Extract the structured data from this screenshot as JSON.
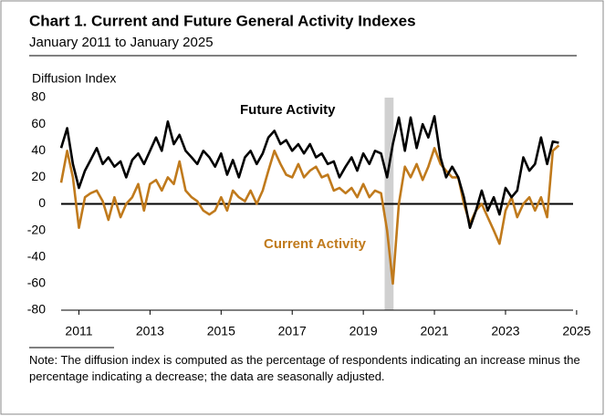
{
  "chart_data": {
    "type": "line",
    "title": "Chart 1. Current and Future General Activity Indexes",
    "subtitle": "January 2011 to January 2025",
    "y_label": "Diffusion Index",
    "note": "Note: The diffusion index is computed as the percentage of respondents indicating an increase minus the percentage indicating a decrease; the data are seasonally adjusted.",
    "x": [
      2011.0,
      2011.17,
      2011.33,
      2011.5,
      2011.67,
      2011.83,
      2012.0,
      2012.17,
      2012.33,
      2012.5,
      2012.67,
      2012.83,
      2013.0,
      2013.17,
      2013.33,
      2013.5,
      2013.67,
      2013.83,
      2014.0,
      2014.17,
      2014.33,
      2014.5,
      2014.67,
      2014.83,
      2015.0,
      2015.17,
      2015.33,
      2015.5,
      2015.67,
      2015.83,
      2016.0,
      2016.17,
      2016.33,
      2016.5,
      2016.67,
      2016.83,
      2017.0,
      2017.17,
      2017.33,
      2017.5,
      2017.67,
      2017.83,
      2018.0,
      2018.17,
      2018.33,
      2018.5,
      2018.67,
      2018.83,
      2019.0,
      2019.17,
      2019.33,
      2019.5,
      2019.67,
      2019.83,
      2020.0,
      2020.17,
      2020.33,
      2020.5,
      2020.67,
      2020.83,
      2021.0,
      2021.17,
      2021.33,
      2021.5,
      2021.67,
      2021.83,
      2022.0,
      2022.17,
      2022.33,
      2022.5,
      2022.67,
      2022.83,
      2023.0,
      2023.17,
      2023.33,
      2023.5,
      2023.67,
      2023.83,
      2024.0,
      2024.17,
      2024.33,
      2024.5,
      2024.67,
      2024.83,
      2025.0
    ],
    "series": [
      {
        "name": "Future Activity",
        "color": "#000000",
        "values": [
          42,
          57,
          30,
          12,
          25,
          33,
          42,
          30,
          35,
          28,
          32,
          20,
          33,
          38,
          30,
          40,
          50,
          40,
          62,
          45,
          52,
          40,
          35,
          30,
          40,
          35,
          28,
          38,
          22,
          33,
          20,
          35,
          40,
          30,
          38,
          50,
          55,
          45,
          48,
          40,
          45,
          38,
          45,
          35,
          38,
          30,
          32,
          20,
          28,
          35,
          25,
          38,
          30,
          40,
          38,
          20,
          45,
          65,
          40,
          65,
          42,
          60,
          50,
          66,
          35,
          20,
          28,
          20,
          5,
          -18,
          -5,
          10,
          -5,
          5,
          -8,
          12,
          5,
          10,
          35,
          25,
          30,
          50,
          30,
          47,
          46
        ]
      },
      {
        "name": "Current Activity",
        "color": "#c07a1c",
        "values": [
          16,
          40,
          20,
          -18,
          5,
          8,
          10,
          2,
          -12,
          5,
          -10,
          0,
          5,
          15,
          -5,
          15,
          18,
          10,
          20,
          15,
          32,
          10,
          5,
          2,
          -5,
          -8,
          -5,
          5,
          -5,
          10,
          5,
          2,
          10,
          0,
          10,
          25,
          40,
          30,
          22,
          20,
          30,
          20,
          25,
          28,
          20,
          22,
          10,
          12,
          8,
          12,
          5,
          15,
          5,
          10,
          8,
          -20,
          -60,
          0,
          28,
          20,
          30,
          18,
          28,
          42,
          30,
          25,
          20,
          20,
          0,
          -15,
          -5,
          0,
          -10,
          -20,
          -30,
          -5,
          5,
          -10,
          0,
          5,
          -5,
          5,
          -10,
          40,
          44
        ]
      }
    ],
    "shaded_x": [
      2020.1,
      2020.35
    ],
    "xlim": [
      2011.0,
      2025.4
    ],
    "xticks": [
      {
        "value": 2011.5,
        "label": "2011"
      },
      {
        "value": 2013.5,
        "label": "2013"
      },
      {
        "value": 2015.5,
        "label": "2015"
      },
      {
        "value": 2017.5,
        "label": "2017"
      },
      {
        "value": 2019.5,
        "label": "2019"
      },
      {
        "value": 2021.5,
        "label": "2021"
      },
      {
        "value": 2023.5,
        "label": "2023"
      },
      {
        "value": 2025.5,
        "label": "2025"
      }
    ],
    "ylim": [
      -80,
      80
    ],
    "yticks": [
      -80,
      -60,
      -40,
      -20,
      0,
      20,
      40,
      60,
      80
    ],
    "grid": false
  }
}
